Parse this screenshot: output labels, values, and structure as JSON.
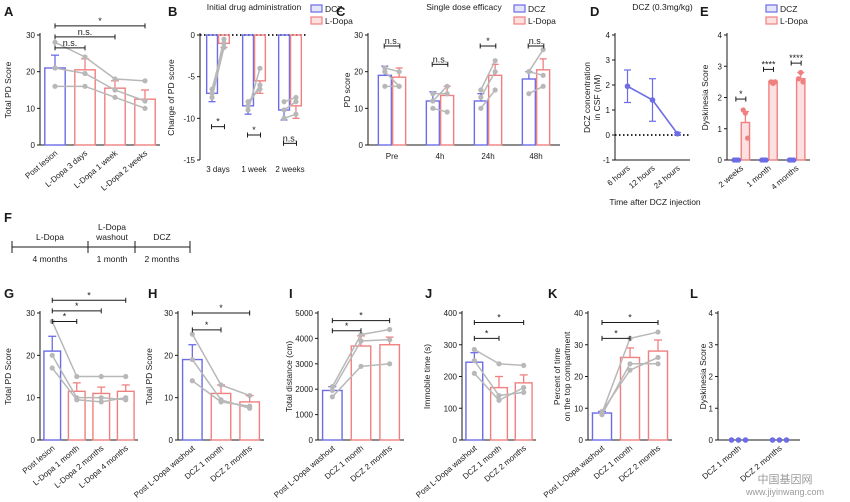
{
  "colors": {
    "dcz": "#6c6ce6",
    "ldopa": "#f08080",
    "ldopa_fill": "#fde0e0",
    "dcz_fill": "#e6e6fb",
    "individual": "#b8b8b8"
  },
  "legend": {
    "dcz": "DCZ",
    "ldopa": "L-Dopa"
  },
  "watermark": {
    "line1": "中国基因网",
    "line2": "www.jiyinwang.com"
  },
  "chart_data": [
    {
      "id": "A",
      "type": "bar",
      "letter": "A",
      "ylabel": "Total PD Score",
      "ylim": [
        0,
        30
      ],
      "yticks": [
        0,
        10,
        20,
        30
      ],
      "categories": [
        "Post lesion",
        "L-Dopa 3 days",
        "L-Dopa 1 week",
        "L-Dopa 2 weeks"
      ],
      "values": [
        21,
        20.5,
        15.5,
        12.5
      ],
      "errors": [
        3.5,
        3,
        2,
        2.5
      ],
      "bar_colors": [
        "dcz",
        "ldopa",
        "ldopa",
        "ldopa"
      ],
      "individuals": [
        [
          28,
          24,
          18,
          17.5
        ],
        [
          21,
          19.5,
          15,
          12
        ],
        [
          16,
          16,
          13,
          10
        ]
      ],
      "significance": [
        {
          "from": 0,
          "to": 3,
          "label": "*",
          "y": 32.5
        },
        {
          "from": 0,
          "to": 2,
          "label": "n.s.",
          "y": 29.5
        },
        {
          "from": 0,
          "to": 1,
          "label": "n.s.",
          "y": 26.5
        }
      ]
    },
    {
      "id": "B",
      "type": "bar",
      "letter": "B",
      "title": "Initial drug administration",
      "ylabel": "Change of PD score",
      "ylim": [
        -15,
        0
      ],
      "yticks": [
        -15,
        -10,
        -5,
        0
      ],
      "categories": [
        "3 days",
        "1 week",
        "2 weeks"
      ],
      "series": [
        {
          "name": "DCZ",
          "values": [
            -7,
            -8.5,
            -9
          ],
          "errors": [
            1,
            1,
            1.2
          ]
        },
        {
          "name": "L-Dopa",
          "values": [
            -1,
            -5.5,
            -8.5
          ],
          "errors": [
            0.5,
            1.5,
            1.5
          ]
        }
      ],
      "individuals": [
        [
          [
            -7,
            -0.5
          ],
          [
            -8,
            -6.5
          ],
          [
            -8,
            -7.5
          ]
        ],
        [
          [
            -6.5,
            -1
          ],
          [
            -9,
            -4
          ],
          [
            -10,
            -9.5
          ]
        ],
        [
          [
            -7.5,
            -1.5
          ],
          [
            -8.5,
            -6
          ],
          [
            -9,
            -8
          ]
        ]
      ],
      "significance": [
        {
          "group": 0,
          "label": "*",
          "y": -11
        },
        {
          "group": 1,
          "label": "*",
          "y": -12
        },
        {
          "group": 2,
          "label": "n.s.",
          "y": -13
        }
      ]
    },
    {
      "id": "C",
      "type": "bar",
      "letter": "C",
      "title": "Single dose efficacy",
      "ylabel": "PD score",
      "ylim": [
        0,
        30
      ],
      "yticks": [
        0,
        10,
        20,
        30
      ],
      "categories": [
        "Pre",
        "4h",
        "24h",
        "48h"
      ],
      "series": [
        {
          "name": "DCZ",
          "values": [
            19,
            12,
            12,
            18
          ],
          "errors": [
            2.5,
            2.5,
            2,
            2
          ]
        },
        {
          "name": "L-Dopa",
          "values": [
            18.5,
            13.5,
            19,
            20.5
          ],
          "errors": [
            2.5,
            2.5,
            3,
            3
          ]
        }
      ],
      "individuals": [
        [
          [
            21,
            20
          ],
          [
            14,
            14
          ],
          [
            15,
            23
          ],
          [
            20,
            26
          ]
        ],
        [
          [
            20,
            16
          ],
          [
            12,
            16
          ],
          [
            13,
            20
          ],
          [
            20,
            19
          ]
        ],
        [
          [
            16,
            16
          ],
          [
            10,
            9
          ],
          [
            10,
            15
          ],
          [
            14,
            16
          ]
        ]
      ],
      "significance": [
        {
          "group": 0,
          "label": "n.s.",
          "y": 27
        },
        {
          "group": 1,
          "label": "n.s.",
          "y": 22
        },
        {
          "group": 2,
          "label": "*",
          "y": 27
        },
        {
          "group": 3,
          "label": "n.s.",
          "y": 27
        }
      ]
    },
    {
      "id": "D",
      "type": "line",
      "letter": "D",
      "title": "DCZ (0.3mg/kg)",
      "ylabel": "DCZ concentration in CSF (nM)",
      "ylabel_lines": [
        "DCZ concentration",
        "in CSF (nM)"
      ],
      "xlabel": "Time after DCZ injection",
      "ylim": [
        -1,
        4
      ],
      "yticks": [
        -1,
        0,
        1,
        2,
        3,
        4
      ],
      "categories": [
        "6 hours",
        "12 hours",
        "24 hours"
      ],
      "values": [
        1.95,
        1.4,
        0.05
      ],
      "errors": [
        0.65,
        0.85,
        0.05
      ]
    },
    {
      "id": "E",
      "type": "bar",
      "letter": "E",
      "ylabel": "Dyskinesia Score",
      "ylim": [
        0,
        4
      ],
      "yticks": [
        0,
        1,
        2,
        3,
        4
      ],
      "categories": [
        "2 weeks",
        "1 month",
        "4 months"
      ],
      "series": [
        {
          "name": "DCZ",
          "values": [
            0,
            0,
            0
          ],
          "errors": [
            0,
            0,
            0
          ]
        },
        {
          "name": "L-Dopa",
          "values": [
            1.2,
            2.5,
            2.6
          ],
          "errors": [
            0.35,
            0.05,
            0.2
          ]
        }
      ],
      "points": [
        [
          [
            0,
            0,
            0
          ],
          [
            1.6,
            1.5,
            0.7
          ]
        ],
        [
          [
            0,
            0,
            0
          ],
          [
            2.5,
            2.45,
            2.5
          ]
        ],
        [
          [
            0,
            0,
            0
          ],
          [
            2.6,
            2.8,
            2.5
          ]
        ]
      ],
      "significance": [
        {
          "group": 0,
          "label": "*",
          "y": 1.95
        },
        {
          "group": 1,
          "label": "****",
          "y": 2.9
        },
        {
          "group": 2,
          "label": "****",
          "y": 3.1
        }
      ]
    },
    {
      "id": "F",
      "type": "table",
      "letter": "F",
      "phases": [
        {
          "label": "L-Dopa",
          "duration": "4 months"
        },
        {
          "label": "L-Dopa washout",
          "label_lines": [
            "L-Dopa",
            "washout"
          ],
          "duration": "1 month"
        },
        {
          "label": "DCZ",
          "duration": "2 months"
        }
      ]
    },
    {
      "id": "G",
      "type": "bar",
      "letter": "G",
      "ylabel": "Total PD Score",
      "ylim": [
        0,
        30
      ],
      "yticks": [
        0,
        10,
        20,
        30
      ],
      "categories": [
        "Post lesion",
        "L-Dopa 1 month",
        "L-Dopa 2 months",
        "L-Dopa 4 months"
      ],
      "values": [
        21,
        11.5,
        11,
        11.5
      ],
      "errors": [
        3.5,
        2,
        1.5,
        1.5
      ],
      "bar_colors": [
        "dcz",
        "ldopa",
        "ldopa",
        "ldopa"
      ],
      "individuals": [
        [
          28,
          15,
          15,
          15
        ],
        [
          20,
          10,
          10,
          9.5
        ],
        [
          17,
          9.5,
          9,
          10
        ]
      ],
      "significance": [
        {
          "from": 0,
          "to": 3,
          "label": "*",
          "y": 33
        },
        {
          "from": 0,
          "to": 2,
          "label": "*",
          "y": 30.5
        },
        {
          "from": 0,
          "to": 1,
          "label": "*",
          "y": 28
        }
      ]
    },
    {
      "id": "H",
      "type": "bar",
      "letter": "H",
      "ylabel": "Total PD Score",
      "ylim": [
        0,
        30
      ],
      "yticks": [
        0,
        10,
        20,
        30
      ],
      "categories": [
        "Post L-Dopa washout",
        "DCZ 1 month",
        "DCZ 2 months"
      ],
      "values": [
        19,
        11,
        9
      ],
      "errors": [
        3.5,
        2,
        1.5
      ],
      "bar_colors": [
        "dcz",
        "ldopa",
        "ldopa"
      ],
      "individuals": [
        [
          25,
          13,
          10.5
        ],
        [
          19,
          9.5,
          7.5
        ],
        [
          14,
          9,
          8
        ]
      ],
      "significance": [
        {
          "from": 0,
          "to": 2,
          "label": "*",
          "y": 30
        },
        {
          "from": 0,
          "to": 1,
          "label": "*",
          "y": 26
        }
      ]
    },
    {
      "id": "I",
      "type": "bar",
      "letter": "I",
      "ylabel": "Total distance (cm)",
      "ylim": [
        0,
        5000
      ],
      "yticks": [
        0,
        1000,
        2000,
        3000,
        4000,
        5000
      ],
      "categories": [
        "Post L-Dopa washout",
        "DCZ 1 month",
        "DCZ 2 months"
      ],
      "values": [
        1950,
        3700,
        3750
      ],
      "errors": [
        150,
        400,
        300
      ],
      "bar_colors": [
        "dcz",
        "ldopa",
        "ldopa"
      ],
      "individuals": [
        [
          2100,
          4150,
          4350
        ],
        [
          1950,
          3900,
          3950
        ],
        [
          1700,
          2900,
          3000
        ]
      ],
      "significance": [
        {
          "from": 0,
          "to": 2,
          "label": "*",
          "y": 4700
        },
        {
          "from": 0,
          "to": 1,
          "label": "*",
          "y": 4300
        }
      ]
    },
    {
      "id": "J",
      "type": "bar",
      "letter": "J",
      "ylabel": "Immobile time (s)",
      "ylim": [
        0,
        400
      ],
      "yticks": [
        0,
        100,
        200,
        300,
        400
      ],
      "categories": [
        "Post L-Dopa washout",
        "DCZ 1 month",
        "DCZ 2 months"
      ],
      "values": [
        245,
        165,
        180
      ],
      "errors": [
        30,
        35,
        25
      ],
      "bar_colors": [
        "dcz",
        "ldopa",
        "ldopa"
      ],
      "individuals": [
        [
          285,
          240,
          235
        ],
        [
          250,
          140,
          150
        ],
        [
          210,
          125,
          165
        ]
      ],
      "significance": [
        {
          "from": 0,
          "to": 2,
          "label": "*",
          "y": 370
        },
        {
          "from": 0,
          "to": 1,
          "label": "*",
          "y": 320
        }
      ]
    },
    {
      "id": "K",
      "type": "bar",
      "letter": "K",
      "ylabel": "Percent of time on the top compartment",
      "ylabel_lines": [
        "Percent of time",
        "on the top compartment"
      ],
      "ylim": [
        0,
        40
      ],
      "yticks": [
        0,
        10,
        20,
        30,
        40
      ],
      "categories": [
        "Post L-Dopa washout",
        "DCZ 1 month",
        "DCZ 2 months"
      ],
      "values": [
        8.5,
        26,
        28
      ],
      "errors": [
        0.5,
        3,
        3.5
      ],
      "bar_colors": [
        "dcz",
        "ldopa",
        "ldopa"
      ],
      "individuals": [
        [
          8.5,
          32,
          34
        ],
        [
          8,
          24,
          24
        ],
        [
          9,
          22,
          26
        ]
      ],
      "significance": [
        {
          "from": 0,
          "to": 2,
          "label": "*",
          "y": 37
        },
        {
          "from": 0,
          "to": 1,
          "label": "*",
          "y": 32
        }
      ]
    },
    {
      "id": "L",
      "type": "scatter",
      "letter": "L",
      "ylabel": "Dyskinesia Score",
      "ylim": [
        0,
        4
      ],
      "yticks": [
        0,
        1,
        2,
        3,
        4
      ],
      "categories": [
        "DCZ 1 month",
        "DCZ 2 months"
      ],
      "points": [
        [
          0,
          0,
          0
        ],
        [
          0,
          0,
          0
        ]
      ]
    }
  ]
}
